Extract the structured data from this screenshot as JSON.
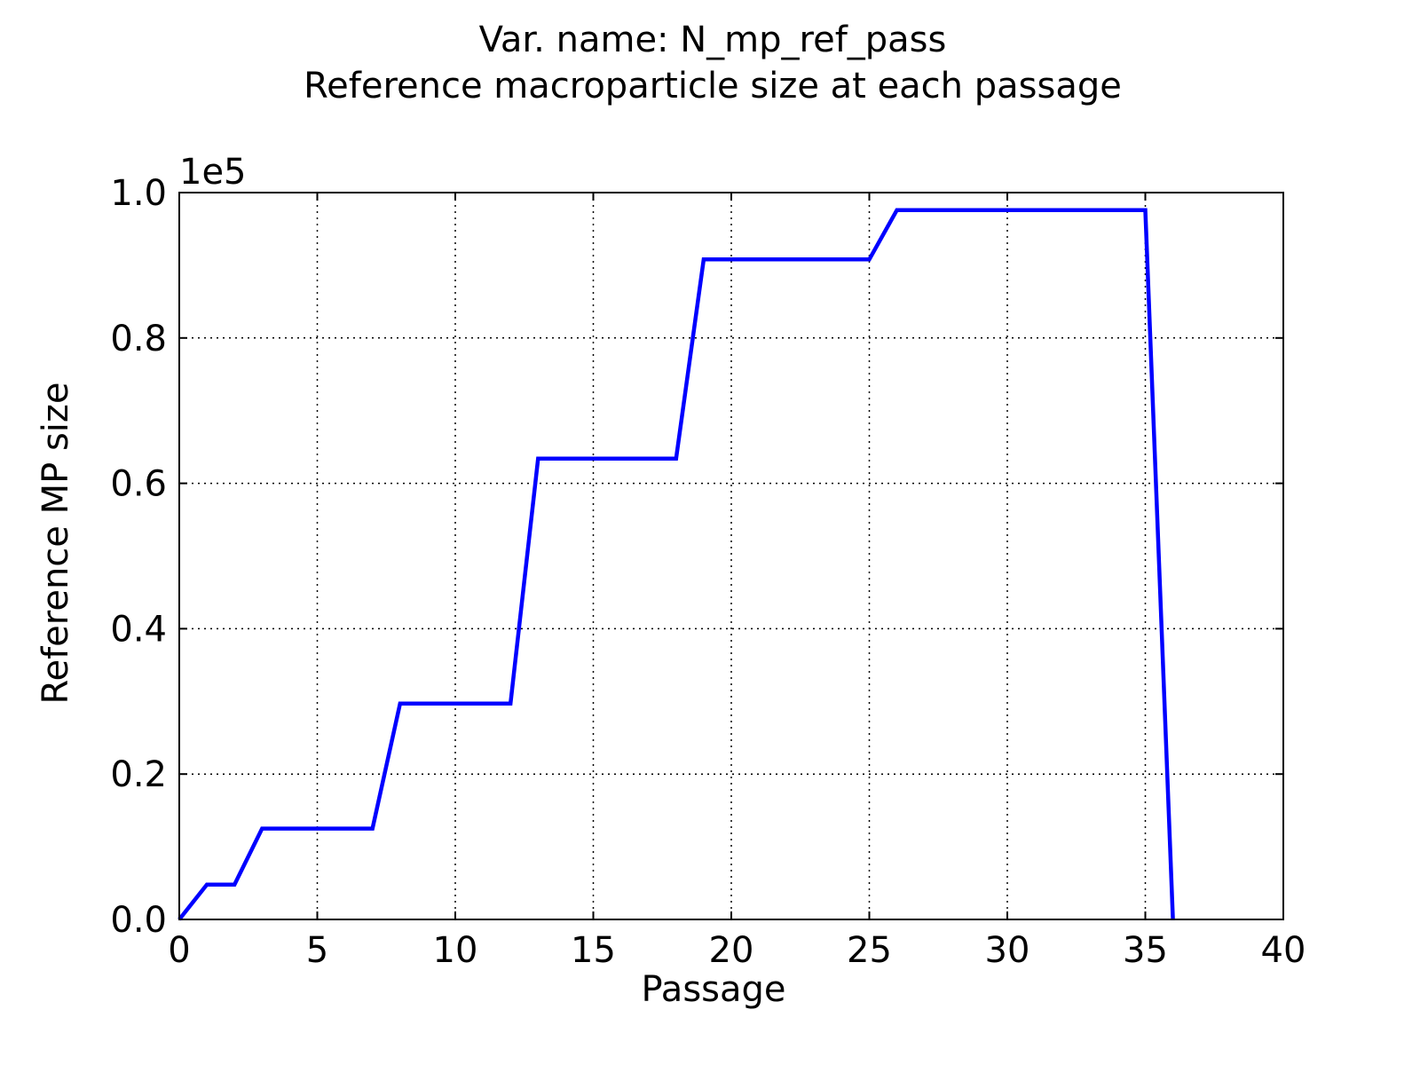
{
  "chart_data": {
    "type": "line",
    "title_line1": "Var. name: N_mp_ref_pass",
    "title_line2": "Reference macroparticle size at each passage",
    "xlabel": "Passage",
    "ylabel": "Reference MP size",
    "y_offset_label": "1e5",
    "xlim": [
      0,
      40
    ],
    "ylim": [
      0,
      1.0
    ],
    "xticks": [
      0,
      5,
      10,
      15,
      20,
      25,
      30,
      35,
      40
    ],
    "xtick_labels": [
      "0",
      "5",
      "10",
      "15",
      "20",
      "25",
      "30",
      "35",
      "40"
    ],
    "yticks": [
      0.0,
      0.2,
      0.4,
      0.6,
      0.8,
      1.0
    ],
    "ytick_labels": [
      "0.0",
      "0.2",
      "0.4",
      "0.6",
      "0.8",
      "1.0"
    ],
    "grid": true,
    "series": [
      {
        "color": "#0000ff",
        "x": [
          0,
          1,
          2,
          3,
          4,
          5,
          6,
          7,
          8,
          9,
          10,
          11,
          12,
          13,
          14,
          15,
          16,
          17,
          18,
          19,
          20,
          21,
          22,
          23,
          24,
          25,
          26,
          27,
          28,
          29,
          30,
          31,
          32,
          33,
          34,
          35,
          36
        ],
        "y": [
          0.0,
          0.048,
          0.048,
          0.125,
          0.125,
          0.125,
          0.125,
          0.125,
          0.297,
          0.297,
          0.297,
          0.297,
          0.297,
          0.634,
          0.634,
          0.634,
          0.634,
          0.634,
          0.634,
          0.908,
          0.908,
          0.908,
          0.908,
          0.908,
          0.908,
          0.908,
          0.976,
          0.976,
          0.976,
          0.976,
          0.976,
          0.976,
          0.976,
          0.976,
          0.976,
          0.976,
          0.0
        ]
      }
    ]
  }
}
